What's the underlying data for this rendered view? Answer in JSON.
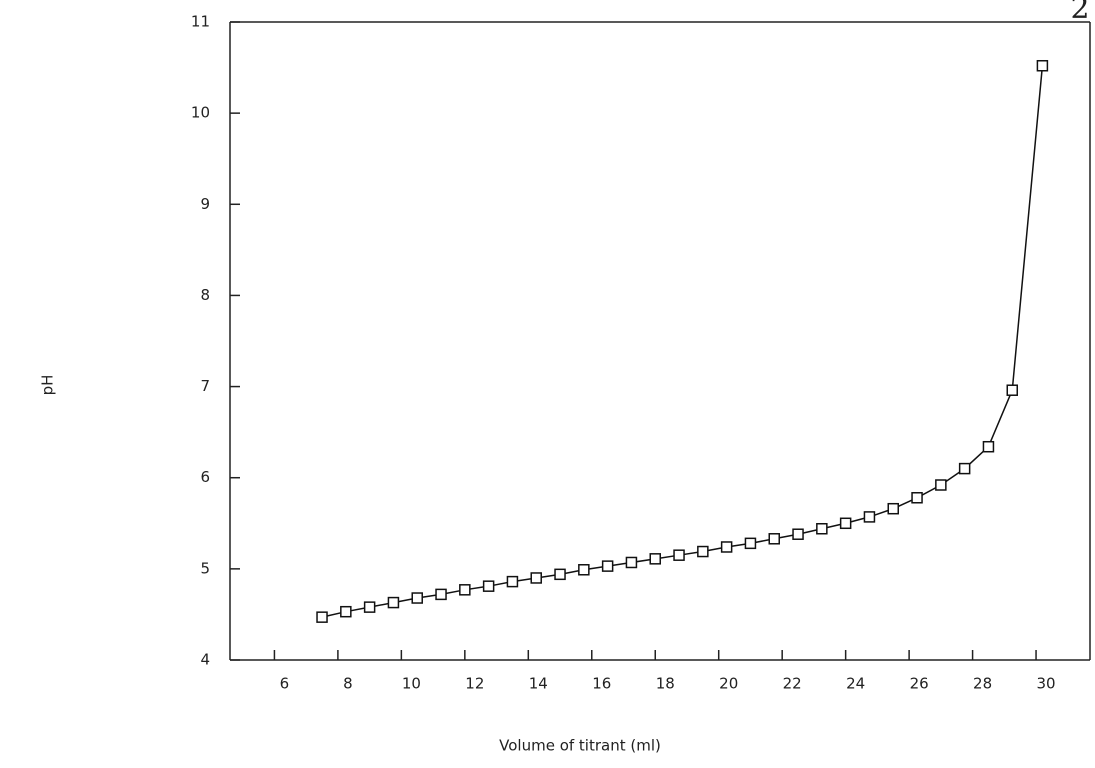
{
  "chart_data": {
    "type": "line",
    "x_label": "Volume of titrant (ml)",
    "y_label": "pH",
    "page_number": "2",
    "series": [
      {
        "color": "#111111",
        "x": [
          7.5,
          8.25,
          9,
          9.75,
          10.5,
          11.25,
          12,
          12.75,
          13.5,
          14.25,
          15,
          15.75,
          16.5,
          17.25,
          18,
          18.75,
          19.5,
          20.25,
          21,
          21.75,
          22.5,
          23.25,
          24,
          24.75,
          25.5,
          26.25,
          27,
          27.75,
          28.5,
          29.25,
          30.2
        ],
        "values": [
          4.47,
          4.53,
          4.58,
          4.63,
          4.68,
          4.72,
          4.77,
          4.81,
          4.86,
          4.9,
          4.94,
          4.99,
          5.03,
          5.07,
          5.11,
          5.15,
          5.19,
          5.24,
          5.28,
          5.33,
          5.38,
          5.44,
          5.5,
          5.57,
          5.66,
          5.78,
          5.92,
          6.1,
          6.34,
          6.96,
          10.52
        ]
      }
    ],
    "marker": "square",
    "xlim": [
      4.6,
      31.7
    ],
    "ylim": [
      4,
      11
    ],
    "xticks": [
      6,
      8,
      10,
      12,
      14,
      16,
      18,
      20,
      22,
      24,
      26,
      28,
      30
    ],
    "yticks": [
      4,
      5,
      6,
      7,
      8,
      9,
      10,
      11
    ]
  }
}
